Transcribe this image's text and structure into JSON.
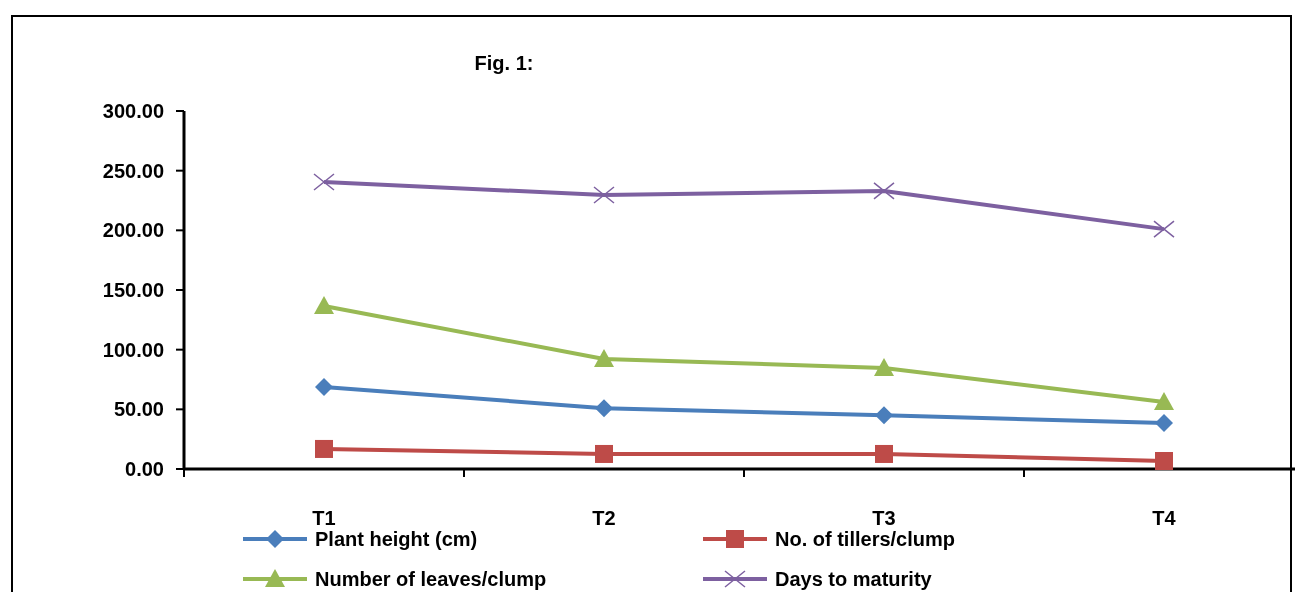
{
  "chart_data": {
    "type": "line",
    "title": "Fig. 1:",
    "categories": [
      "T1",
      "T2",
      "T3",
      "T4"
    ],
    "series": [
      {
        "name": "Plant height (cm)",
        "color": "#4a7ebb",
        "marker": "diamond",
        "values": [
          68.7,
          51,
          45,
          38.6
        ]
      },
      {
        "name": "No. of tillers/clump",
        "color": "#be4b48",
        "marker": "square",
        "values": [
          16.8,
          12.6,
          12.6,
          6.7
        ]
      },
      {
        "name": "Number of leaves/clump",
        "color": "#98b954",
        "marker": "triangle",
        "values": [
          136.6,
          92.2,
          84.7,
          56.2
        ]
      },
      {
        "name": "Days to maturity",
        "color": "#7d60a0",
        "marker": "cross",
        "values": [
          240.5,
          229.6,
          233,
          201
        ]
      }
    ],
    "ylim": [
      0,
      300
    ],
    "yticks": [
      {
        "value": 0,
        "label": "0.00"
      },
      {
        "value": 50,
        "label": "50.00"
      },
      {
        "value": 100,
        "label": "100.00"
      },
      {
        "value": 150,
        "label": "150.00"
      },
      {
        "value": 200,
        "label": "200.00"
      },
      {
        "value": 250,
        "label": "250.00"
      },
      {
        "value": 300,
        "label": "300.00"
      }
    ],
    "grid": false,
    "legend": "bottom"
  }
}
